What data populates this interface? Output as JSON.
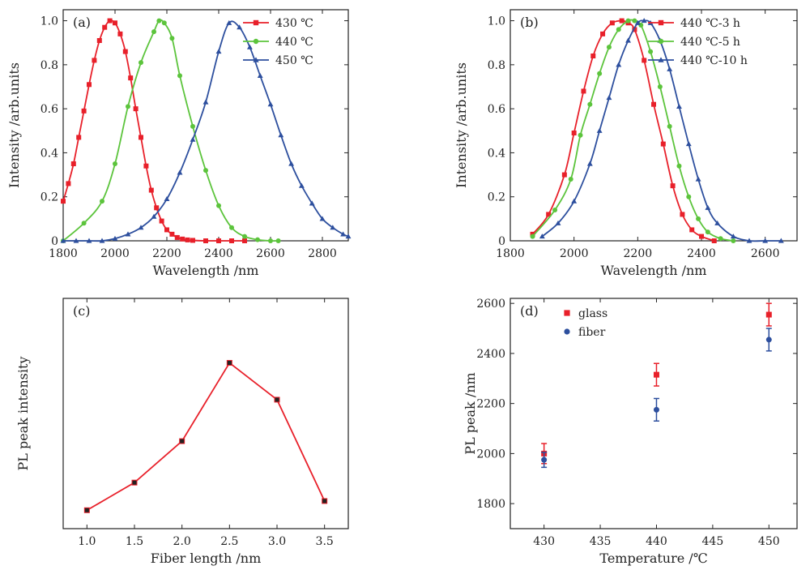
{
  "chart_data": [
    {
      "panel": "(a)",
      "type": "line",
      "xlabel": "Wavelength /nm",
      "ylabel": "Intensity /arb.units",
      "xlim": [
        1800,
        2900
      ],
      "ylim": [
        0,
        1.05
      ],
      "xticks": [
        1800,
        2000,
        2200,
        2400,
        2600,
        2800
      ],
      "yticks": [
        0,
        0.2,
        0.4,
        0.6,
        0.8,
        1.0
      ],
      "legend_position": "top-right",
      "series": [
        {
          "name": "430 ℃",
          "color": "#e8202a",
          "marker": "square",
          "x": [
            1800,
            1820,
            1840,
            1860,
            1880,
            1900,
            1920,
            1940,
            1960,
            1980,
            2000,
            2020,
            2040,
            2060,
            2080,
            2100,
            2120,
            2140,
            2160,
            2180,
            2200,
            2220,
            2240,
            2260,
            2280,
            2300,
            2350,
            2400,
            2450,
            2500
          ],
          "y": [
            0.18,
            0.26,
            0.35,
            0.47,
            0.59,
            0.71,
            0.82,
            0.91,
            0.97,
            1.0,
            0.99,
            0.94,
            0.86,
            0.74,
            0.6,
            0.47,
            0.34,
            0.23,
            0.15,
            0.09,
            0.05,
            0.03,
            0.015,
            0.008,
            0.004,
            0.002,
            0.0,
            0.0,
            0.0,
            0.0
          ]
        },
        {
          "name": "440 ℃",
          "color": "#5cc43c",
          "marker": "circle",
          "x": [
            1800,
            1880,
            1950,
            2000,
            2050,
            2100,
            2150,
            2170,
            2190,
            2220,
            2250,
            2300,
            2350,
            2400,
            2450,
            2500,
            2550,
            2600,
            2630
          ],
          "y": [
            0.0,
            0.08,
            0.18,
            0.35,
            0.61,
            0.81,
            0.95,
            1.0,
            0.99,
            0.92,
            0.75,
            0.52,
            0.32,
            0.16,
            0.06,
            0.02,
            0.005,
            0.0,
            0.0
          ]
        },
        {
          "name": "450 ℃",
          "color": "#2d4f9e",
          "marker": "triangle",
          "x": [
            1800,
            1850,
            1900,
            1950,
            2000,
            2050,
            2100,
            2150,
            2200,
            2250,
            2300,
            2350,
            2400,
            2440,
            2480,
            2520,
            2560,
            2600,
            2640,
            2680,
            2720,
            2760,
            2800,
            2840,
            2880,
            2900
          ],
          "y": [
            0.0,
            0.0,
            0.0,
            0.0,
            0.01,
            0.03,
            0.06,
            0.11,
            0.19,
            0.31,
            0.46,
            0.63,
            0.86,
            0.99,
            0.97,
            0.88,
            0.75,
            0.62,
            0.48,
            0.35,
            0.25,
            0.17,
            0.1,
            0.06,
            0.03,
            0.02
          ]
        }
      ]
    },
    {
      "panel": "(b)",
      "type": "line",
      "xlabel": "Wavelength /nm",
      "ylabel": "Intensity /arb.units",
      "xlim": [
        1800,
        2700
      ],
      "ylim": [
        0,
        1.05
      ],
      "xticks": [
        1800,
        2000,
        2200,
        2400,
        2600
      ],
      "yticks": [
        0,
        0.2,
        0.4,
        0.6,
        0.8,
        1.0
      ],
      "legend_position": "top-right",
      "series": [
        {
          "name": "440 ℃-3 h",
          "color": "#e8202a",
          "marker": "square",
          "x": [
            1870,
            1920,
            1970,
            2000,
            2030,
            2060,
            2090,
            2120,
            2150,
            2170,
            2190,
            2220,
            2250,
            2280,
            2310,
            2340,
            2370,
            2400,
            2440
          ],
          "y": [
            0.03,
            0.12,
            0.3,
            0.49,
            0.68,
            0.84,
            0.94,
            0.99,
            1.0,
            0.99,
            0.96,
            0.82,
            0.62,
            0.44,
            0.25,
            0.12,
            0.05,
            0.02,
            0.0
          ]
        },
        {
          "name": "440 ℃-5 h",
          "color": "#5cc43c",
          "marker": "circle",
          "x": [
            1870,
            1940,
            1990,
            2020,
            2050,
            2080,
            2110,
            2140,
            2170,
            2190,
            2210,
            2240,
            2270,
            2300,
            2330,
            2360,
            2390,
            2420,
            2460,
            2500
          ],
          "y": [
            0.02,
            0.14,
            0.28,
            0.48,
            0.62,
            0.76,
            0.88,
            0.96,
            1.0,
            1.0,
            0.98,
            0.86,
            0.7,
            0.52,
            0.34,
            0.2,
            0.1,
            0.04,
            0.01,
            0.0
          ]
        },
        {
          "name": "440 ℃-10 h",
          "color": "#2d4f9e",
          "marker": "triangle",
          "x": [
            1900,
            1950,
            2000,
            2050,
            2080,
            2110,
            2140,
            2170,
            2200,
            2220,
            2240,
            2270,
            2300,
            2330,
            2360,
            2390,
            2420,
            2450,
            2500,
            2550,
            2600,
            2650
          ],
          "y": [
            0.02,
            0.08,
            0.18,
            0.35,
            0.5,
            0.65,
            0.8,
            0.91,
            0.99,
            1.0,
            0.99,
            0.91,
            0.78,
            0.61,
            0.44,
            0.28,
            0.15,
            0.08,
            0.02,
            0.0,
            0.0,
            0.0
          ]
        }
      ]
    },
    {
      "panel": "(c)",
      "type": "line",
      "xlabel": "Fiber length /nm",
      "ylabel": "PL peak intensity",
      "xlim": [
        0.75,
        3.75
      ],
      "ylim": [
        0,
        1.0
      ],
      "xticks": [
        1.0,
        1.5,
        2.0,
        2.5,
        3.0,
        3.5
      ],
      "xticklabels": [
        "1.0",
        "1.5",
        "2.0",
        "2.5",
        "3.0",
        "3.5"
      ],
      "yticks": [],
      "series": [
        {
          "name": "",
          "color": "#e8202a",
          "marker": "square",
          "x": [
            1.0,
            1.5,
            2.0,
            2.5,
            3.0,
            3.5
          ],
          "y": [
            0.08,
            0.2,
            0.38,
            0.72,
            0.56,
            0.12
          ]
        }
      ]
    },
    {
      "panel": "(d)",
      "type": "scatter",
      "xlabel": "Temperature /℃",
      "ylabel": "PL peak /nm",
      "xlim": [
        427,
        452.5
      ],
      "ylim": [
        1700,
        2620
      ],
      "xticks": [
        430,
        435,
        440,
        445,
        450
      ],
      "yticks": [
        1800,
        2000,
        2200,
        2400,
        2600
      ],
      "legend_position": "top-left",
      "series": [
        {
          "name": "glass",
          "color": "#e8202a",
          "marker": "square",
          "x": [
            430,
            440,
            450
          ],
          "y": [
            2000,
            2315,
            2555
          ],
          "err": [
            40,
            45,
            45
          ]
        },
        {
          "name": "fiber",
          "color": "#2d4f9e",
          "marker": "circle",
          "x": [
            430,
            440,
            450
          ],
          "y": [
            1975,
            2175,
            2455
          ],
          "err": [
            30,
            45,
            45
          ]
        }
      ]
    }
  ]
}
